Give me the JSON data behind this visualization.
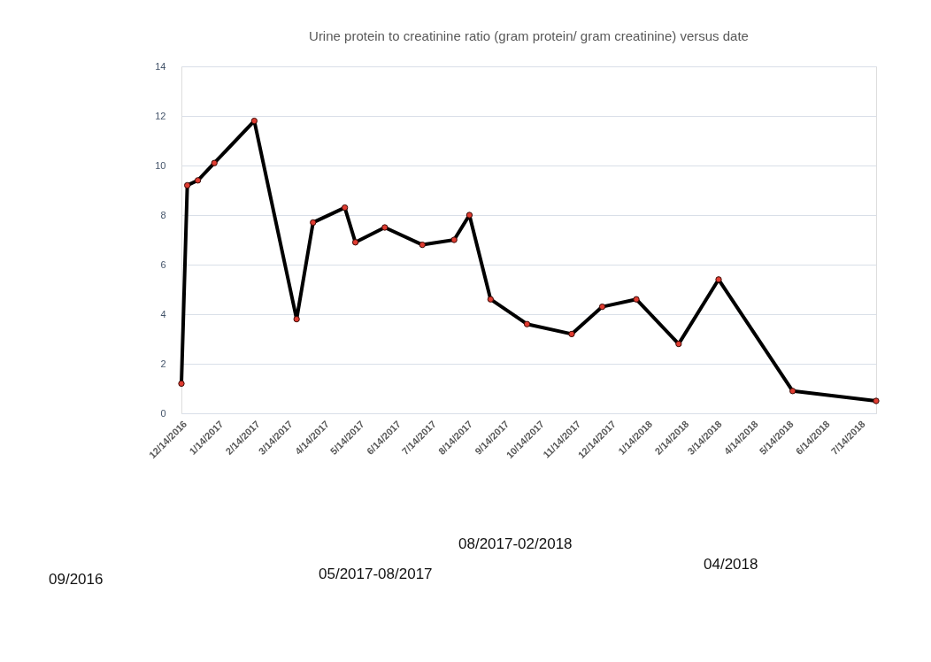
{
  "chart_data": {
    "type": "line",
    "title": "Urine protein to creatinine ratio (gram protein/ gram creatinine) versus date",
    "x": [
      "2016-12-14",
      "2016-12-19",
      "2016-12-28",
      "2017-01-11",
      "2017-02-14",
      "2017-03-22",
      "2017-04-05",
      "2017-05-02",
      "2017-05-11",
      "2017-06-05",
      "2017-07-07",
      "2017-08-03",
      "2017-08-16",
      "2017-09-03",
      "2017-10-04",
      "2017-11-11",
      "2017-12-07",
      "2018-01-05",
      "2018-02-10",
      "2018-03-16",
      "2018-05-18",
      "2018-07-28"
    ],
    "series": [
      {
        "color": "#000000",
        "colors": [
          "#e03c31",
          "#e03c31",
          "#e03c31",
          "#e03c31",
          "#e03c31",
          "#e03c31",
          "#e03c31",
          "#e03c31",
          "#e03c31",
          "#e03c31",
          "#e03c31",
          "#e03c31",
          "#e03c31",
          "#e03c31",
          "#e03c31",
          "#e03c31",
          "#e03c31",
          "#e03c31",
          "#e03c31",
          "#e03c31",
          "#e03c31",
          "#e03c31"
        ],
        "values": [
          1.2,
          9.2,
          9.4,
          10.1,
          11.8,
          3.8,
          7.7,
          8.3,
          6.9,
          7.5,
          6.8,
          7.0,
          8.0,
          4.6,
          3.6,
          3.2,
          4.3,
          4.6,
          2.8,
          5.4,
          0.9,
          0.5
        ]
      }
    ],
    "xlim": [
      "2016-12-14",
      "2018-07-28"
    ],
    "xticks": [
      {
        "value": "2016-12-14",
        "label": "12/14/2016"
      },
      {
        "value": "2017-01-14",
        "label": "1/14/2017"
      },
      {
        "value": "2017-02-14",
        "label": "2/14/2017"
      },
      {
        "value": "2017-03-14",
        "label": "3/14/2017"
      },
      {
        "value": "2017-04-14",
        "label": "4/14/2017"
      },
      {
        "value": "2017-05-14",
        "label": "5/14/2017"
      },
      {
        "value": "2017-06-14",
        "label": "6/14/2017"
      },
      {
        "value": "2017-07-14",
        "label": "7/14/2017"
      },
      {
        "value": "2017-08-14",
        "label": "8/14/2017"
      },
      {
        "value": "2017-09-14",
        "label": "9/14/2017"
      },
      {
        "value": "2017-10-14",
        "label": "10/14/2017"
      },
      {
        "value": "2017-11-14",
        "label": "11/14/2017"
      },
      {
        "value": "2017-12-14",
        "label": "12/14/2017"
      },
      {
        "value": "2018-01-14",
        "label": "1/14/2018"
      },
      {
        "value": "2018-02-14",
        "label": "2/14/2018"
      },
      {
        "value": "2018-03-14",
        "label": "3/14/2018"
      },
      {
        "value": "2018-04-14",
        "label": "4/14/2018"
      },
      {
        "value": "2018-05-14",
        "label": "5/14/2018"
      },
      {
        "value": "2018-06-14",
        "label": "6/14/2018"
      },
      {
        "value": "2018-07-14",
        "label": "7/14/2018"
      }
    ],
    "ylim": [
      0,
      14
    ],
    "yticks": [
      0,
      2,
      4,
      6,
      8,
      10,
      12,
      14
    ],
    "grid": "y",
    "marker": "circle",
    "line_style": "solid",
    "annotations": [
      "09/2016",
      "05/2017-08/2017",
      "08/2017-02/2018",
      "04/2018"
    ]
  }
}
